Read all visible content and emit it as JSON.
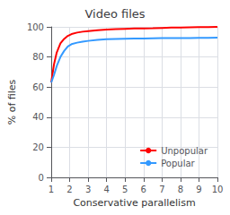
{
  "chart_data": {
    "type": "line",
    "title": "Video files",
    "xlabel": "Conservative parallelism",
    "ylabel": "% of files",
    "x": [
      1.0,
      1.15,
      1.3,
      1.5,
      1.7,
      1.9,
      2.1,
      2.4,
      2.7,
      3.0,
      3.5,
      4.0,
      4.5,
      5.0,
      5.5,
      6.0,
      6.5,
      7.0,
      7.5,
      8.0,
      8.5,
      9.0,
      9.5,
      10.0
    ],
    "series": [
      {
        "name": "Unpopular",
        "color": "#ff0000",
        "values": [
          63,
          75,
          83,
          89,
          92,
          94,
          95.2,
          96.2,
          96.8,
          97.2,
          97.8,
          98.2,
          98.5,
          98.7,
          98.9,
          99.0,
          99.1,
          99.3,
          99.5,
          99.6,
          99.7,
          99.8,
          99.9,
          100.0
        ]
      },
      {
        "name": "Popular",
        "color": "#3399ff",
        "values": [
          63,
          68,
          74,
          80,
          84,
          87,
          88.5,
          89.5,
          90.2,
          90.7,
          91.3,
          91.8,
          92.0,
          92.1,
          92.2,
          92.3,
          92.4,
          92.5,
          92.5,
          92.6,
          92.6,
          92.7,
          92.7,
          92.8
        ]
      }
    ],
    "xlim": [
      1,
      10
    ],
    "ylim": [
      0,
      100
    ],
    "xticks": [
      1,
      2,
      3,
      4,
      5,
      6,
      7,
      8,
      9,
      10
    ],
    "yticks": [
      0,
      20,
      40,
      60,
      80,
      100
    ],
    "grid": true,
    "legend": "lower right"
  }
}
